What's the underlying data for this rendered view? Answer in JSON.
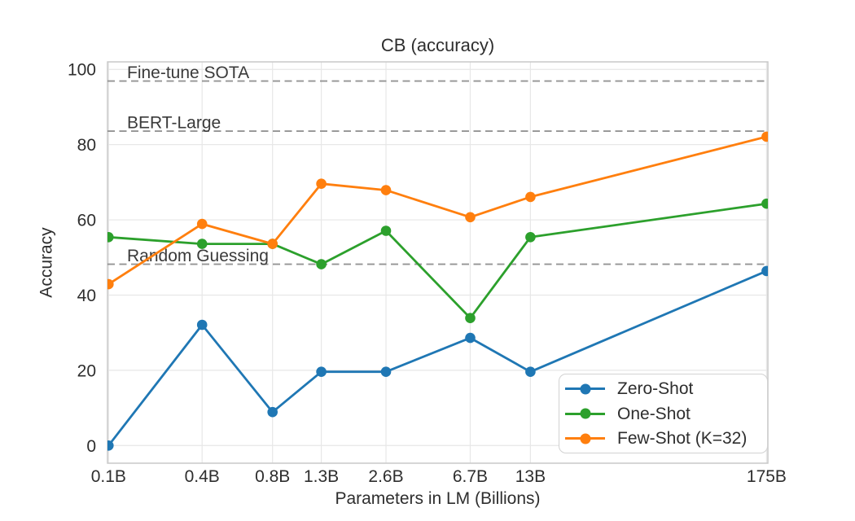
{
  "chart_data": {
    "type": "line",
    "title": "CB (accuracy)",
    "xlabel": "Parameters in LM (Billions)",
    "ylabel": "Accuracy",
    "x_scale": "log",
    "x_tick_labels": [
      "0.1B",
      "0.4B",
      "0.8B",
      "1.3B",
      "2.6B",
      "6.7B",
      "13B",
      "175B"
    ],
    "x_values_billions": [
      0.125,
      0.35,
      0.76,
      1.3,
      2.65,
      6.7,
      13,
      175
    ],
    "y_ticks": [
      0,
      20,
      40,
      60,
      80,
      100
    ],
    "ylim": [
      -4.7,
      102.0
    ],
    "xlim_billions": [
      0.1235,
      177.5
    ],
    "grid": true,
    "series": [
      {
        "name": "Zero-Shot",
        "color": "#1f77b4",
        "values": [
          0.0,
          32.1,
          8.9,
          19.6,
          19.6,
          28.6,
          19.6,
          46.4
        ]
      },
      {
        "name": "One-Shot",
        "color": "#2ca02c",
        "values": [
          55.4,
          53.6,
          53.6,
          48.2,
          57.1,
          33.9,
          55.4,
          64.3
        ]
      },
      {
        "name": "Few-Shot (K=32)",
        "color": "#ff7f0e",
        "values": [
          42.9,
          58.9,
          53.6,
          69.6,
          67.9,
          60.7,
          66.1,
          82.1
        ]
      }
    ],
    "baselines": [
      {
        "label": "Fine-tune SOTA",
        "value": 96.9
      },
      {
        "label": "BERT-Large",
        "value": 83.6
      },
      {
        "label": "Random Guessing",
        "value": 48.2
      }
    ],
    "legend": {
      "position": "lower right",
      "entries": [
        "Zero-Shot",
        "One-Shot",
        "Few-Shot (K=32)"
      ]
    },
    "style": {
      "grid_color": "#e7e7e7",
      "spine_color": "#c9c9c9",
      "baseline_color": "#949494",
      "text_color": "#2e2e2e",
      "background": "#ffffff"
    }
  }
}
